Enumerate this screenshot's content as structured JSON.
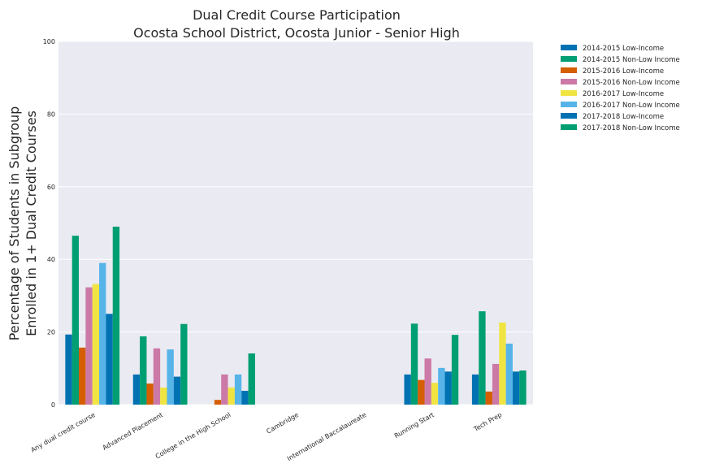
{
  "chart_data": {
    "type": "bar",
    "title": "Dual Credit Course Participation",
    "subtitle": "Ocosta School District, Ocosta Junior - Senior High",
    "xlabel": "",
    "ylabel_line1": "Percentage of Students in Subgroup",
    "ylabel_line2": "Enrolled in 1+ Dual Credit Courses",
    "ylim": [
      0,
      100
    ],
    "yticks": [
      0,
      20,
      40,
      60,
      80,
      100
    ],
    "grid": true,
    "legend_placement": "outside-top-right",
    "categories": [
      "Any dual credit course",
      "Advanced Placement",
      "College in the High School",
      "Cambridge",
      "International Baccalaureate",
      "Running Start",
      "Tech Prep"
    ],
    "series": [
      {
        "name": "2014-2015 Low-Income",
        "color": "#0072b2",
        "values": [
          19.3,
          8.3,
          0,
          0,
          0,
          8.3,
          8.3
        ]
      },
      {
        "name": "2014-2015 Non-Low Income",
        "color": "#009e73",
        "values": [
          46.5,
          18.8,
          0,
          0,
          0,
          22.3,
          25.7
        ]
      },
      {
        "name": "2015-2016 Low-Income",
        "color": "#d55e00",
        "values": [
          15.7,
          5.8,
          1.3,
          0,
          0,
          6.8,
          3.6
        ]
      },
      {
        "name": "2015-2016 Non-Low Income",
        "color": "#cc79a7",
        "values": [
          32.3,
          15.5,
          8.3,
          0,
          0,
          12.7,
          11.2
        ]
      },
      {
        "name": "2016-2017 Low-Income",
        "color": "#f0e442",
        "values": [
          33.2,
          4.7,
          4.7,
          0,
          0,
          6.0,
          22.6
        ]
      },
      {
        "name": "2016-2017 Non-Low Income",
        "color": "#56b4e9",
        "values": [
          39.0,
          15.2,
          8.3,
          0,
          0,
          10.1,
          16.8
        ]
      },
      {
        "name": "2017-2018 Low-Income",
        "color": "#0072b2",
        "values": [
          25.0,
          7.7,
          3.8,
          0,
          0,
          9.1,
          9.1
        ]
      },
      {
        "name": "2017-2018 Non-Low Income",
        "color": "#009e73",
        "values": [
          49.0,
          22.2,
          14.1,
          0,
          0,
          19.2,
          9.4
        ]
      }
    ]
  }
}
